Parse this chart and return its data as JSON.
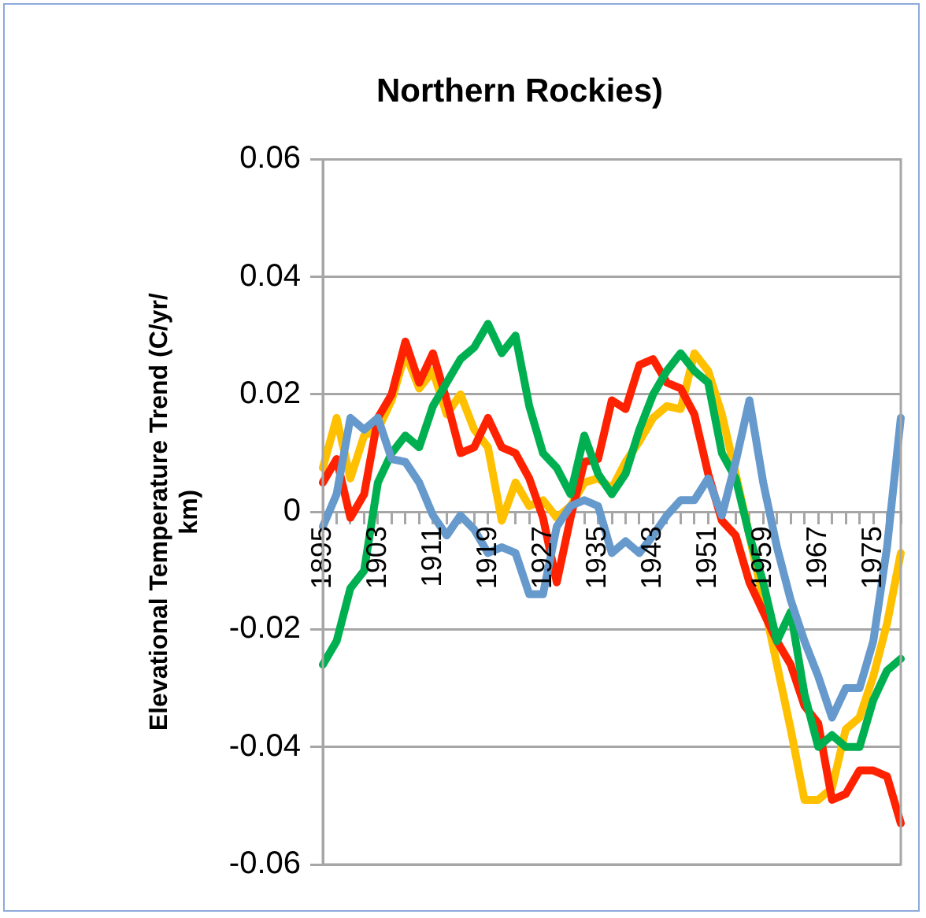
{
  "chart_data": {
    "type": "line",
    "title": "Northern Rockies)",
    "ylabel": "Elevational Temperature Trend (C/yr/ km)",
    "categories": [
      "1895",
      null,
      null,
      null,
      "1903",
      null,
      null,
      null,
      "1911",
      null,
      null,
      null,
      "1919",
      null,
      null,
      null,
      "1927",
      null,
      null,
      null,
      "1935",
      null,
      null,
      null,
      "1943",
      null,
      null,
      null,
      "1951",
      null,
      null,
      null,
      "1959",
      null,
      null,
      null,
      "1967",
      null,
      null,
      null,
      "1975",
      null,
      null
    ],
    "series": [
      {
        "color": "#6699cc",
        "values": [
          -0.0025,
          0.003,
          0.016,
          0.014,
          0.016,
          0.009,
          0.0085,
          0.005,
          -0.0006,
          -0.004,
          -0.0006,
          -0.003,
          -0.007,
          -0.006,
          -0.007,
          -0.014,
          -0.014,
          -0.0025,
          0.001,
          0.002,
          0.001,
          -0.007,
          -0.005,
          -0.007,
          -0.004,
          -0.0006,
          0.002,
          0.002,
          0.0057,
          -0.0006,
          0.0085,
          0.019,
          0.005,
          -0.006,
          -0.015,
          -0.022,
          -0.028,
          -0.035,
          -0.03,
          -0.03,
          -0.022,
          -0.006,
          0.016
        ]
      },
      {
        "color": "#00b050",
        "values": [
          -0.026,
          -0.022,
          -0.013,
          -0.01,
          0.005,
          0.01,
          0.013,
          0.011,
          0.018,
          0.022,
          0.026,
          0.028,
          0.032,
          0.027,
          0.03,
          0.018,
          0.01,
          0.0075,
          0.003,
          0.013,
          0.0065,
          0.003,
          0.0065,
          0.014,
          0.02,
          0.024,
          0.027,
          0.024,
          0.022,
          0.01,
          0.0057,
          -0.004,
          -0.012,
          -0.022,
          -0.017,
          -0.031,
          -0.04,
          -0.038,
          -0.04,
          -0.04,
          -0.032,
          -0.027,
          -0.025
        ]
      },
      {
        "color": "#ff2200",
        "values": [
          0.005,
          0.009,
          -0.001,
          0.003,
          0.016,
          0.02,
          0.029,
          0.022,
          0.027,
          0.019,
          0.01,
          0.011,
          0.016,
          0.011,
          0.01,
          0.0057,
          -0.001,
          -0.012,
          -0.001,
          0.0085,
          0.009,
          0.019,
          0.0175,
          0.025,
          0.026,
          0.022,
          0.021,
          0.0166,
          0.0065,
          -0.0015,
          -0.004,
          -0.012,
          -0.017,
          -0.022,
          -0.026,
          -0.033,
          -0.036,
          -0.049,
          -0.048,
          -0.044,
          -0.044,
          -0.045,
          -0.053
        ]
      },
      {
        "color": "#ffc000",
        "values": [
          0.0075,
          0.016,
          0.0057,
          0.013,
          0.014,
          0.019,
          0.027,
          0.021,
          0.024,
          0.0166,
          0.02,
          0.014,
          0.011,
          -0.0015,
          0.005,
          0.001,
          0.002,
          -0.001,
          0.001,
          0.005,
          0.0057,
          0.004,
          0.0085,
          0.012,
          0.016,
          0.018,
          0.0175,
          0.027,
          0.024,
          0.0166,
          0.0065,
          -0.004,
          -0.015,
          -0.026,
          -0.037,
          -0.049,
          -0.049,
          -0.047,
          -0.037,
          -0.035,
          -0.028,
          -0.019,
          -0.007
        ]
      }
    ],
    "ylim": [
      -0.06,
      0.06
    ],
    "yticks": [
      -0.06,
      -0.04,
      -0.02,
      0,
      0.02,
      0.04,
      0.06
    ],
    "grid": "y",
    "legend": false,
    "marker": "none",
    "line_style": "solid"
  }
}
